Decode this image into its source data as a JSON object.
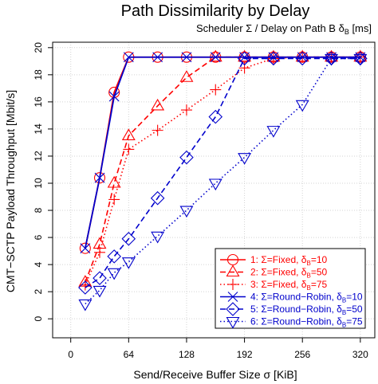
{
  "chart_data": {
    "type": "line",
    "title": "Path Dissimilarity by Delay",
    "subtitle": "Scheduler Σ / Delay on Path B δB [ms]",
    "xlabel": "Send/Receive Buffer Size σ [KiB]",
    "ylabel": "CMT−SCTP Payload Throughput [Mbit/s]",
    "xlim": [
      -20,
      336
    ],
    "ylim": [
      -1.4,
      20.4
    ],
    "xticks": [
      0,
      64,
      128,
      192,
      256,
      320
    ],
    "yticks": [
      0,
      2,
      4,
      6,
      8,
      10,
      12,
      14,
      16,
      18,
      20
    ],
    "grid": true,
    "legend_position": "bottom-right",
    "series": [
      {
        "name": "1: Σ=Fixed, δB=10",
        "color": "#ff0000",
        "line": "solid",
        "marker": "circle",
        "x": [
          16,
          32,
          48,
          64,
          96,
          128,
          160,
          192,
          224,
          256,
          288,
          320
        ],
        "y": [
          5.2,
          10.4,
          16.7,
          19.3,
          19.3,
          19.3,
          19.3,
          19.3,
          19.3,
          19.3,
          19.3,
          19.3
        ]
      },
      {
        "name": "2: Σ=Fixed, δB=50",
        "color": "#ff0000",
        "line": "dashed",
        "marker": "triangle-up",
        "x": [
          16,
          32,
          48,
          64,
          96,
          128,
          160,
          192,
          224,
          256,
          288,
          320
        ],
        "y": [
          2.7,
          5.5,
          10.0,
          13.5,
          15.7,
          17.8,
          19.3,
          19.3,
          19.3,
          19.3,
          19.3,
          19.3
        ]
      },
      {
        "name": "3: Σ=Fixed, δB=75",
        "color": "#ff0000",
        "line": "dotted",
        "marker": "plus",
        "x": [
          16,
          32,
          48,
          64,
          96,
          128,
          160,
          192,
          224,
          256,
          288,
          320
        ],
        "y": [
          2.5,
          4.9,
          8.8,
          12.5,
          13.9,
          15.4,
          16.9,
          18.5,
          19.2,
          19.3,
          19.3,
          19.3
        ]
      },
      {
        "name": "4: Σ=Round−Robin, δB=10",
        "color": "#0000cc",
        "line": "solid",
        "marker": "x",
        "x": [
          16,
          32,
          48,
          64,
          96,
          128,
          160,
          192,
          224,
          256,
          288,
          320
        ],
        "y": [
          5.2,
          10.4,
          16.4,
          19.3,
          19.3,
          19.3,
          19.3,
          19.3,
          19.3,
          19.3,
          19.3,
          19.3
        ]
      },
      {
        "name": "5: Σ=Round−Robin, δB=50",
        "color": "#0000cc",
        "line": "dashed",
        "marker": "diamond",
        "x": [
          16,
          32,
          48,
          64,
          96,
          128,
          160,
          192,
          224,
          256,
          288,
          320
        ],
        "y": [
          2.3,
          3.0,
          4.6,
          5.9,
          8.9,
          11.9,
          14.9,
          19.2,
          19.2,
          19.2,
          19.2,
          19.2
        ]
      },
      {
        "name": "6: Σ=Round−Robin, δB=75",
        "color": "#0000cc",
        "line": "dotted",
        "marker": "triangle-down",
        "x": [
          16,
          32,
          48,
          64,
          96,
          128,
          160,
          192,
          224,
          256,
          288,
          320
        ],
        "y": [
          1.1,
          2.1,
          3.4,
          4.2,
          6.1,
          8.0,
          10.0,
          11.9,
          13.9,
          15.8,
          19.2,
          19.2
        ]
      }
    ],
    "legend": [
      {
        "prefix": "1: Σ=Fixed, δ",
        "sub": "B",
        "suffix": "=10"
      },
      {
        "prefix": "2: Σ=Fixed, δ",
        "sub": "B",
        "suffix": "=50"
      },
      {
        "prefix": "3: Σ=Fixed, δ",
        "sub": "B",
        "suffix": "=75"
      },
      {
        "prefix": "4: Σ=Round−Robin, δ",
        "sub": "B",
        "suffix": "=10"
      },
      {
        "prefix": "5: Σ=Round−Robin, δ",
        "sub": "B",
        "suffix": "=50"
      },
      {
        "prefix": "6: Σ=Round−Robin, δ",
        "sub": "B",
        "suffix": "=75"
      }
    ],
    "subtitle_parts": {
      "prefix": "Scheduler Σ / Delay on Path B δ",
      "sub": "B",
      "suffix": " [ms]"
    }
  }
}
